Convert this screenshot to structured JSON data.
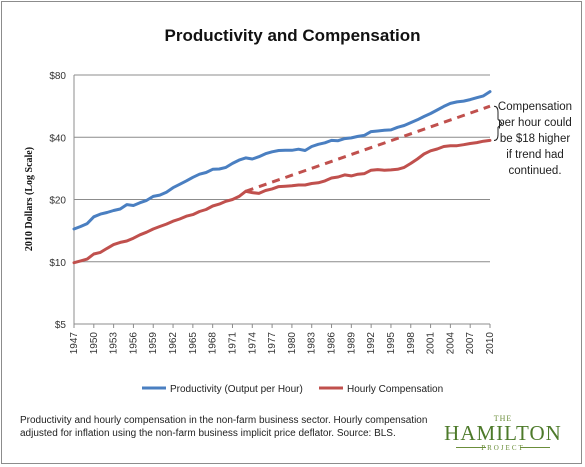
{
  "chart_data": {
    "type": "line",
    "title": "Productivity and Compensation",
    "ylabel": "2010 Dollars (Log Scale)",
    "xlabel": "",
    "y_scale": "log",
    "ylim": [
      5,
      80
    ],
    "xlim": [
      1947,
      2010
    ],
    "y_ticks": [
      5,
      10,
      20,
      40,
      80
    ],
    "y_tick_labels": [
      "$5",
      "$10",
      "$20",
      "$40",
      "$80"
    ],
    "x_ticks": [
      1947,
      1950,
      1953,
      1956,
      1959,
      1962,
      1965,
      1968,
      1971,
      1974,
      1977,
      1980,
      1983,
      1986,
      1989,
      1992,
      1995,
      1998,
      2001,
      2004,
      2007,
      2010
    ],
    "grid": "horizontal",
    "legend_position": "bottom",
    "series": [
      {
        "name": "Productivity (Output per Hour)",
        "color": "#4a7fc1",
        "x": [
          1947,
          1948,
          1949,
          1950,
          1951,
          1952,
          1953,
          1954,
          1955,
          1956,
          1957,
          1958,
          1959,
          1960,
          1961,
          1962,
          1963,
          1964,
          1965,
          1966,
          1967,
          1968,
          1969,
          1970,
          1971,
          1972,
          1973,
          1974,
          1975,
          1976,
          1977,
          1978,
          1979,
          1980,
          1981,
          1982,
          1983,
          1984,
          1985,
          1986,
          1987,
          1988,
          1989,
          1990,
          1991,
          1992,
          1993,
          1994,
          1995,
          1996,
          1997,
          1998,
          1999,
          2000,
          2001,
          2002,
          2003,
          2004,
          2005,
          2006,
          2007,
          2008,
          2009,
          2010
        ],
        "values": [
          14.4,
          14.8,
          15.3,
          16.5,
          17.0,
          17.3,
          17.7,
          18.0,
          18.9,
          18.7,
          19.3,
          19.8,
          20.7,
          21.0,
          21.7,
          22.8,
          23.7,
          24.6,
          25.6,
          26.5,
          27.0,
          28.0,
          28.1,
          28.6,
          29.9,
          31.0,
          31.8,
          31.4,
          32.2,
          33.3,
          34.0,
          34.5,
          34.6,
          34.6,
          35.0,
          34.5,
          36.1,
          37.0,
          37.6,
          38.6,
          38.5,
          39.4,
          39.7,
          40.4,
          40.9,
          42.6,
          42.9,
          43.2,
          43.4,
          44.7,
          45.6,
          47.1,
          48.6,
          50.4,
          52.1,
          54.2,
          56.4,
          58.3,
          59.3,
          59.8,
          60.8,
          62.1,
          63.4,
          66.5
        ]
      },
      {
        "name": "Hourly Compensation",
        "color": "#c0504d",
        "x": [
          1947,
          1948,
          1949,
          1950,
          1951,
          1952,
          1953,
          1954,
          1955,
          1956,
          1957,
          1958,
          1959,
          1960,
          1961,
          1962,
          1963,
          1964,
          1965,
          1966,
          1967,
          1968,
          1969,
          1970,
          1971,
          1972,
          1973,
          1974,
          1975,
          1976,
          1977,
          1978,
          1979,
          1980,
          1981,
          1982,
          1983,
          1984,
          1985,
          1986,
          1987,
          1988,
          1989,
          1990,
          1991,
          1992,
          1993,
          1994,
          1995,
          1996,
          1997,
          1998,
          1999,
          2000,
          2001,
          2002,
          2003,
          2004,
          2005,
          2006,
          2007,
          2008,
          2009,
          2010
        ],
        "values": [
          9.9,
          10.1,
          10.3,
          10.9,
          11.1,
          11.6,
          12.1,
          12.4,
          12.6,
          13.0,
          13.5,
          13.9,
          14.4,
          14.8,
          15.2,
          15.7,
          16.1,
          16.6,
          16.9,
          17.5,
          17.9,
          18.6,
          19.0,
          19.6,
          20.0,
          20.7,
          21.9,
          21.6,
          21.4,
          22.1,
          22.5,
          23.1,
          23.2,
          23.3,
          23.5,
          23.5,
          23.9,
          24.1,
          24.6,
          25.4,
          25.7,
          26.3,
          26.0,
          26.5,
          26.7,
          27.7,
          27.9,
          27.7,
          27.8,
          28.0,
          28.6,
          29.9,
          31.4,
          33.2,
          34.4,
          35.1,
          36.1,
          36.4,
          36.4,
          36.8,
          37.3,
          37.7,
          38.3,
          38.6
        ]
      },
      {
        "name": "",
        "style": "dashed",
        "color": "#c0504d",
        "x": [
          1973,
          2010
        ],
        "values": [
          21.9,
          56.5
        ]
      }
    ],
    "annotations": [
      {
        "text": "Compensation per hour could be $18 higher if trend had continued."
      }
    ]
  },
  "annotation_lines": [
    "Compensation",
    "per hour could",
    "be $18 higher",
    "if trend had",
    "continued."
  ],
  "footnote": "Productivity and hourly compensation in the non-farm business sector. Hourly compensation adjusted for inflation using the non-farm business implicit price deflator. Source: BLS.",
  "logo": {
    "the": "THE",
    "name": "HAMILTON",
    "project": "PROJECT",
    "color": "#4d7a2a"
  }
}
